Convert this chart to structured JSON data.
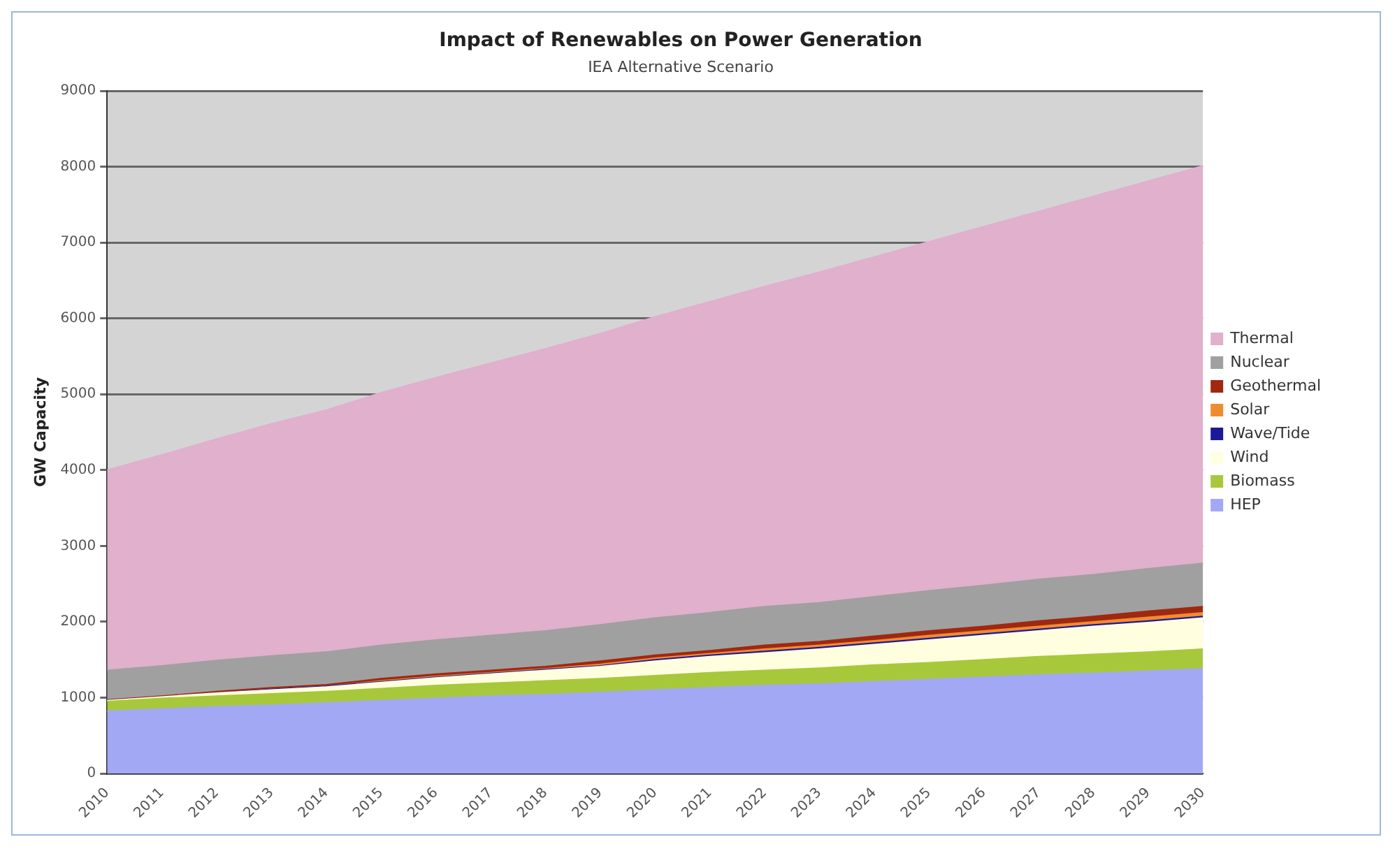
{
  "chart_data": {
    "type": "area",
    "title": "Impact of Renewables on Power Generation",
    "subtitle": "IEA Alternative Scenario",
    "ylabel": "GW Capacity",
    "categories": [
      "2010",
      "2011",
      "2012",
      "2013",
      "2014",
      "2015",
      "2016",
      "2017",
      "2018",
      "2019",
      "2020",
      "2021",
      "2022",
      "2023",
      "2024",
      "2025",
      "2026",
      "2027",
      "2028",
      "2029",
      "2030"
    ],
    "stacked": true,
    "ylim": [
      0,
      9000
    ],
    "yticks": [
      0,
      1000,
      2000,
      3000,
      4000,
      5000,
      6000,
      7000,
      8000,
      9000
    ],
    "grid": "y",
    "legend": "right",
    "series": [
      {
        "name": "HEP",
        "color": "#a3a8f5",
        "values": [
          820,
          850,
          880,
          900,
          930,
          960,
          990,
          1020,
          1040,
          1070,
          1100,
          1130,
          1160,
          1180,
          1210,
          1240,
          1270,
          1300,
          1320,
          1350,
          1380
        ]
      },
      {
        "name": "Biomass",
        "color": "#a8c83c",
        "values": [
          130,
          140,
          140,
          150,
          150,
          160,
          170,
          170,
          180,
          180,
          190,
          200,
          200,
          210,
          220,
          220,
          230,
          240,
          250,
          250,
          260
        ]
      },
      {
        "name": "Wind",
        "color": "#ffffe0",
        "values": [
          10,
          20,
          40,
          50,
          60,
          80,
          100,
          120,
          140,
          160,
          190,
          210,
          230,
          250,
          270,
          300,
          320,
          340,
          370,
          390,
          410
        ]
      },
      {
        "name": "Wave/Tide",
        "color": "#1a1a99",
        "values": [
          0,
          0,
          0,
          10,
          10,
          10,
          10,
          10,
          10,
          10,
          20,
          20,
          20,
          20,
          20,
          20,
          20,
          20,
          20,
          20,
          20
        ]
      },
      {
        "name": "Solar",
        "color": "#f08c30",
        "values": [
          0,
          0,
          0,
          0,
          0,
          10,
          10,
          10,
          10,
          20,
          20,
          20,
          30,
          30,
          30,
          40,
          40,
          40,
          40,
          50,
          50
        ]
      },
      {
        "name": "Geothermal",
        "color": "#a02810",
        "values": [
          10,
          10,
          20,
          20,
          20,
          30,
          30,
          30,
          30,
          40,
          40,
          40,
          50,
          50,
          60,
          60,
          60,
          70,
          70,
          80,
          80
        ]
      },
      {
        "name": "Nuclear",
        "color": "#a0a0a0",
        "values": [
          390,
          400,
          410,
          420,
          430,
          440,
          450,
          460,
          470,
          480,
          490,
          500,
          510,
          510,
          520,
          530,
          540,
          550,
          550,
          560,
          570
        ]
      },
      {
        "name": "Thermal",
        "color": "#e0b0cc",
        "values": [
          2640,
          2780,
          2920,
          3060,
          3190,
          3330,
          3460,
          3590,
          3720,
          3840,
          3970,
          4100,
          4220,
          4360,
          4480,
          4600,
          4730,
          4850,
          4990,
          5110,
          5240
        ]
      }
    ]
  }
}
